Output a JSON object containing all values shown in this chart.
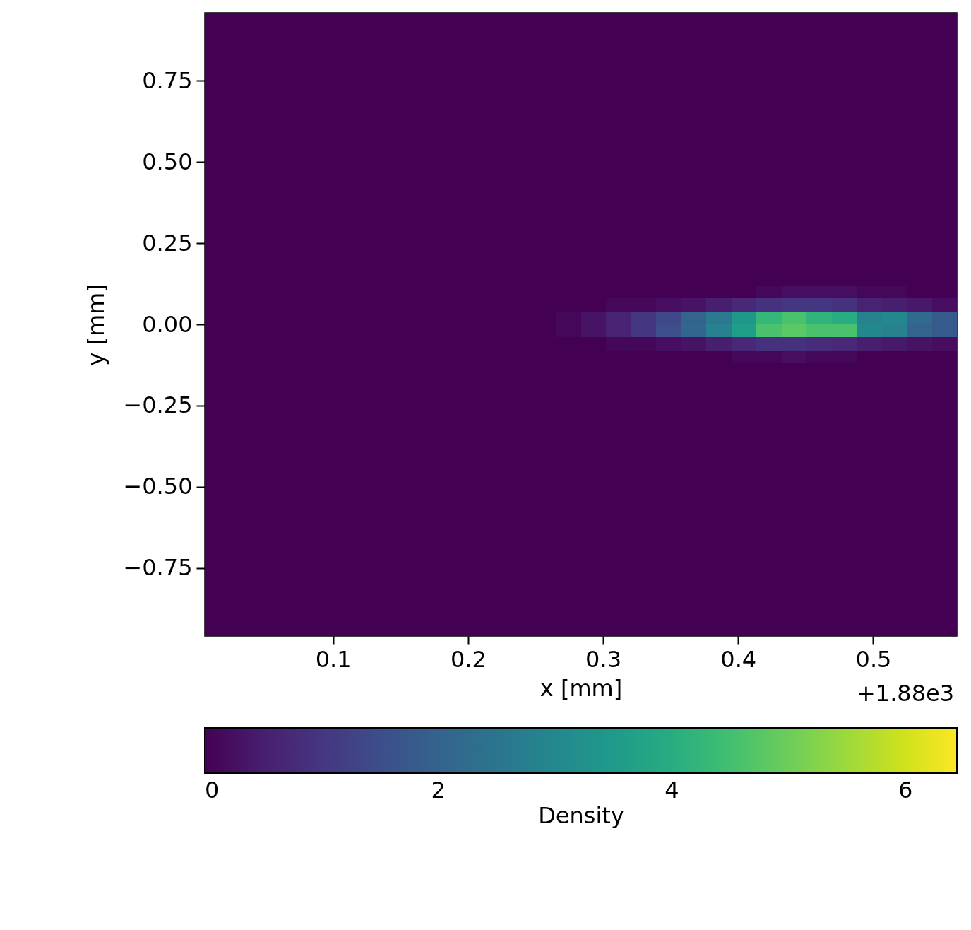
{
  "chart_data": {
    "type": "heatmap",
    "xlabel": "x [mm]",
    "ylabel": "y [mm]",
    "clabel": "Density",
    "annotations": [
      "+1.88e3"
    ],
    "xlim": [
      0.005,
      0.562
    ],
    "ylim": [
      -0.96,
      0.96
    ],
    "xticks": [
      0.1,
      0.2,
      0.3,
      0.4,
      0.5
    ],
    "yticks": [
      {
        "value": -0.75,
        "label": "−0.75"
      },
      {
        "value": -0.5,
        "label": "−0.50"
      },
      {
        "value": -0.25,
        "label": "−0.25"
      },
      {
        "value": 0,
        "label": "0.00"
      },
      {
        "value": 0.25,
        "label": "0.25"
      },
      {
        "value": 0.5,
        "label": "0.50"
      },
      {
        "value": 0.75,
        "label": "0.75"
      }
    ],
    "clim": [
      0,
      6.44
    ],
    "cticks": [
      0,
      2,
      4,
      6
    ],
    "cells": [
      [
        0,
        0,
        0,
        0,
        0,
        0,
        0,
        0,
        0,
        0,
        0,
        0,
        0,
        0,
        0,
        0,
        0,
        0,
        0,
        0,
        0,
        0,
        0,
        0,
        0,
        0,
        0,
        0,
        0,
        0
      ],
      [
        0,
        0,
        0,
        0,
        0,
        0,
        0,
        0,
        0,
        0,
        0,
        0,
        0,
        0,
        0,
        0,
        0,
        0,
        0,
        0,
        0,
        0,
        0,
        0,
        0,
        0,
        0,
        0,
        0,
        0
      ],
      [
        0,
        0,
        0,
        0,
        0,
        0,
        0,
        0,
        0,
        0,
        0,
        0,
        0,
        0,
        0,
        0,
        0,
        0,
        0,
        0,
        0,
        0,
        0,
        0,
        0,
        0,
        0,
        0,
        0,
        0
      ],
      [
        0,
        0,
        0,
        0,
        0,
        0,
        0,
        0,
        0,
        0,
        0,
        0,
        0,
        0,
        0,
        0,
        0,
        0,
        0,
        0,
        0,
        0,
        0,
        0,
        0,
        0,
        0,
        0,
        0,
        0
      ],
      [
        0,
        0,
        0,
        0,
        0,
        0,
        0,
        0,
        0,
        0,
        0,
        0,
        0,
        0,
        0,
        0,
        0,
        0,
        0,
        0,
        0,
        0,
        0,
        0,
        0,
        0,
        0,
        0,
        0,
        0
      ],
      [
        0,
        0,
        0,
        0,
        0,
        0,
        0,
        0,
        0,
        0,
        0,
        0,
        0,
        0,
        0,
        0,
        0,
        0,
        0,
        0,
        0,
        0,
        0,
        0,
        0,
        0,
        0,
        0,
        0,
        0
      ],
      [
        0,
        0,
        0,
        0,
        0,
        0,
        0,
        0,
        0,
        0,
        0,
        0,
        0,
        0,
        0,
        0,
        0,
        0,
        0,
        0,
        0,
        0,
        0,
        0,
        0,
        0,
        0,
        0,
        0,
        0
      ],
      [
        0,
        0,
        0,
        0,
        0,
        0,
        0,
        0,
        0,
        0,
        0,
        0,
        0,
        0,
        0,
        0,
        0,
        0,
        0,
        0,
        0,
        0,
        0,
        0,
        0,
        0,
        0,
        0,
        0,
        0
      ],
      [
        0,
        0,
        0,
        0,
        0,
        0,
        0,
        0,
        0,
        0,
        0,
        0,
        0,
        0,
        0,
        0,
        0,
        0,
        0,
        0,
        0,
        0,
        0,
        0,
        0,
        0,
        0,
        0,
        0,
        0
      ],
      [
        0,
        0,
        0,
        0,
        0,
        0,
        0,
        0,
        0,
        0,
        0,
        0,
        0,
        0,
        0,
        0,
        0,
        0,
        0,
        0,
        0,
        0,
        0,
        0,
        0,
        0,
        0,
        0,
        0,
        0
      ],
      [
        0,
        0,
        0,
        0,
        0,
        0,
        0,
        0,
        0,
        0,
        0,
        0,
        0,
        0,
        0,
        0,
        0,
        0,
        0,
        0,
        0,
        0,
        0,
        0,
        0,
        0,
        0,
        0,
        0,
        0
      ],
      [
        0,
        0,
        0,
        0,
        0,
        0,
        0,
        0,
        0,
        0,
        0,
        0,
        0,
        0,
        0,
        0,
        0,
        0,
        0,
        0,
        0,
        0,
        0,
        0,
        0,
        0,
        0,
        0,
        0,
        0
      ],
      [
        0,
        0,
        0,
        0,
        0,
        0,
        0,
        0,
        0,
        0,
        0,
        0,
        0,
        0,
        0,
        0,
        0,
        0,
        0,
        0,
        0,
        0,
        0,
        0,
        0,
        0,
        0,
        0,
        0,
        0
      ],
      [
        0,
        0,
        0,
        0,
        0,
        0,
        0,
        0,
        0,
        0,
        0,
        0,
        0,
        0,
        0,
        0,
        0,
        0,
        0,
        0,
        0,
        0,
        0,
        0,
        0,
        0,
        0,
        0,
        0,
        0
      ],
      [
        0,
        0,
        0,
        0,
        0,
        0,
        0,
        0,
        0,
        0,
        0,
        0,
        0,
        0,
        0,
        0,
        0,
        0,
        0,
        0,
        0,
        0,
        0,
        0,
        0,
        0,
        0,
        0,
        0,
        0
      ],
      [
        0,
        0,
        0,
        0,
        0,
        0,
        0,
        0,
        0,
        0,
        0,
        0,
        0,
        0,
        0,
        0,
        0,
        0,
        0,
        0,
        0,
        0,
        0,
        0,
        0,
        0,
        0,
        0,
        0,
        0
      ],
      [
        0,
        0,
        0,
        0,
        0,
        0,
        0,
        0,
        0,
        0,
        0,
        0,
        0,
        0,
        0,
        0,
        0,
        0,
        0,
        0,
        0,
        0,
        0,
        0,
        0,
        0,
        0,
        0,
        0,
        0
      ],
      [
        0,
        0,
        0,
        0,
        0,
        0,
        0,
        0,
        0,
        0,
        0,
        0,
        0,
        0,
        0,
        0,
        0,
        0,
        0,
        0,
        0,
        0,
        0,
        0,
        0,
        0,
        0,
        0,
        0,
        0
      ],
      [
        0,
        0,
        0,
        0,
        0,
        0,
        0,
        0,
        0,
        0,
        0,
        0,
        0,
        0,
        0,
        0,
        0,
        0,
        0,
        0,
        0,
        0,
        0,
        0,
        0,
        0,
        0,
        0,
        0,
        0
      ],
      [
        0,
        0,
        0,
        0,
        0,
        0,
        0,
        0,
        0,
        0,
        0,
        0,
        0,
        0,
        0,
        0,
        0,
        0,
        0,
        0,
        0,
        0,
        0,
        0,
        0,
        0,
        0,
        0,
        0,
        0
      ],
      [
        0,
        0,
        0,
        0,
        0,
        0,
        0,
        0,
        0,
        0,
        0,
        0,
        0,
        0,
        0,
        0,
        0,
        0,
        0,
        0,
        0,
        0,
        0,
        0,
        0,
        0,
        0,
        0,
        0,
        0
      ],
      [
        0,
        0,
        0,
        0,
        0,
        0,
        0,
        0,
        0,
        0,
        0,
        0,
        0,
        0,
        0,
        0,
        0,
        0,
        0,
        0,
        0,
        0,
        0.1,
        0.2,
        0.2,
        0.2,
        0.1,
        0.1,
        0,
        0
      ],
      [
        0,
        0,
        0,
        0,
        0,
        0,
        0,
        0,
        0,
        0,
        0,
        0,
        0,
        0,
        0,
        0,
        0.1,
        0.1,
        0.2,
        0.3,
        0.5,
        0.7,
        0.9,
        1.0,
        1.0,
        0.9,
        0.6,
        0.5,
        0.4,
        0.2
      ],
      [
        0,
        0,
        0,
        0,
        0,
        0,
        0,
        0,
        0,
        0,
        0,
        0,
        0,
        0,
        0.1,
        0.3,
        0.6,
        1.0,
        1.4,
        2.0,
        2.6,
        3.4,
        4.3,
        4.6,
        4.2,
        4.0,
        2.8,
        3.0,
        2.2,
        1.8
      ],
      [
        0,
        0,
        0,
        0,
        0,
        0,
        0,
        0,
        0,
        0,
        0,
        0,
        0,
        0,
        0.1,
        0.3,
        0.6,
        1.0,
        1.5,
        2.1,
        2.8,
        3.6,
        4.6,
        4.8,
        4.6,
        4.6,
        3.0,
        2.8,
        2.0,
        1.8
      ],
      [
        0,
        0,
        0,
        0,
        0,
        0,
        0,
        0,
        0,
        0,
        0,
        0,
        0,
        0,
        0,
        0,
        0.1,
        0.1,
        0.2,
        0.3,
        0.5,
        0.7,
        0.9,
        0.9,
        0.8,
        0.7,
        0.5,
        0.4,
        0.3,
        0.2
      ],
      [
        0,
        0,
        0,
        0,
        0,
        0,
        0,
        0,
        0,
        0,
        0,
        0,
        0,
        0,
        0,
        0,
        0,
        0,
        0,
        0,
        0,
        0.1,
        0.1,
        0.2,
        0.1,
        0.1,
        0,
        0,
        0,
        0
      ],
      [
        0,
        0,
        0,
        0,
        0,
        0,
        0,
        0,
        0,
        0,
        0,
        0,
        0,
        0,
        0,
        0,
        0,
        0,
        0,
        0,
        0,
        0,
        0,
        0,
        0,
        0,
        0,
        0,
        0,
        0
      ],
      [
        0,
        0,
        0,
        0,
        0,
        0,
        0,
        0,
        0,
        0,
        0,
        0,
        0,
        0,
        0,
        0,
        0,
        0,
        0,
        0,
        0,
        0,
        0,
        0,
        0,
        0,
        0,
        0,
        0,
        0
      ],
      [
        0,
        0,
        0,
        0,
        0,
        0,
        0,
        0,
        0,
        0,
        0,
        0,
        0,
        0,
        0,
        0,
        0,
        0,
        0,
        0,
        0,
        0,
        0,
        0,
        0,
        0,
        0,
        0,
        0,
        0
      ],
      [
        0,
        0,
        0,
        0,
        0,
        0,
        0,
        0,
        0,
        0,
        0,
        0,
        0,
        0,
        0,
        0,
        0,
        0,
        0,
        0,
        0,
        0,
        0,
        0,
        0,
        0,
        0,
        0,
        0,
        0
      ],
      [
        0,
        0,
        0,
        0,
        0,
        0,
        0,
        0,
        0,
        0,
        0,
        0,
        0,
        0,
        0,
        0,
        0,
        0,
        0,
        0,
        0,
        0,
        0,
        0,
        0,
        0,
        0,
        0,
        0,
        0
      ],
      [
        0,
        0,
        0,
        0,
        0,
        0,
        0,
        0,
        0,
        0,
        0,
        0,
        0,
        0,
        0,
        0,
        0,
        0,
        0,
        0,
        0,
        0,
        0,
        0,
        0,
        0,
        0,
        0,
        0,
        0
      ],
      [
        0,
        0,
        0,
        0,
        0,
        0,
        0,
        0,
        0,
        0,
        0,
        0,
        0,
        0,
        0,
        0,
        0,
        0,
        0,
        0,
        0,
        0,
        0,
        0,
        0,
        0,
        0,
        0,
        0,
        0
      ],
      [
        0,
        0,
        0,
        0,
        0,
        0,
        0,
        0,
        0,
        0,
        0,
        0,
        0,
        0,
        0,
        0,
        0,
        0,
        0,
        0,
        0,
        0,
        0,
        0,
        0,
        0,
        0,
        0,
        0,
        0
      ],
      [
        0,
        0,
        0,
        0,
        0,
        0,
        0,
        0,
        0,
        0,
        0,
        0,
        0,
        0,
        0,
        0,
        0,
        0,
        0,
        0,
        0,
        0,
        0,
        0,
        0,
        0,
        0,
        0,
        0,
        0
      ],
      [
        0,
        0,
        0,
        0,
        0,
        0,
        0,
        0,
        0,
        0,
        0,
        0,
        0,
        0,
        0,
        0,
        0,
        0,
        0,
        0,
        0,
        0,
        0,
        0,
        0,
        0,
        0,
        0,
        0,
        0
      ],
      [
        0,
        0,
        0,
        0,
        0,
        0,
        0,
        0,
        0,
        0,
        0,
        0,
        0,
        0,
        0,
        0,
        0,
        0,
        0,
        0,
        0,
        0,
        0,
        0,
        0,
        0,
        0,
        0,
        0,
        0
      ],
      [
        0,
        0,
        0,
        0,
        0,
        0,
        0,
        0,
        0,
        0,
        0,
        0,
        0,
        0,
        0,
        0,
        0,
        0,
        0,
        0,
        0,
        0,
        0,
        0,
        0,
        0,
        0,
        0,
        0,
        0
      ],
      [
        0,
        0,
        0,
        0,
        0,
        0,
        0,
        0,
        0,
        0,
        0,
        0,
        0,
        0,
        0,
        0,
        0,
        0,
        0,
        0,
        0,
        0,
        0,
        0,
        0,
        0,
        0,
        0,
        0,
        0
      ],
      [
        0,
        0,
        0,
        0,
        0,
        0,
        0,
        0,
        0,
        0,
        0,
        0,
        0,
        0,
        0,
        0,
        0,
        0,
        0,
        0,
        0,
        0,
        0,
        0,
        0,
        0,
        0,
        0,
        0,
        0
      ],
      [
        0,
        0,
        0,
        0,
        0,
        0,
        0,
        0,
        0,
        0,
        0,
        0,
        0,
        0,
        0,
        0,
        0,
        0,
        0,
        0,
        0,
        0,
        0,
        0,
        0,
        0,
        0,
        0,
        0,
        0
      ],
      [
        0,
        0,
        0,
        0,
        0,
        0,
        0,
        0,
        0,
        0,
        0,
        0,
        0,
        0,
        0,
        0,
        0,
        0,
        0,
        0,
        0,
        0,
        0,
        0,
        0,
        0,
        0,
        0,
        0,
        0
      ],
      [
        0,
        0,
        0,
        0,
        0,
        0,
        0,
        0,
        0,
        0,
        0,
        0,
        0,
        0,
        0,
        0,
        0,
        0,
        0,
        0,
        0,
        0,
        0,
        0,
        0,
        0,
        0,
        0,
        0,
        0
      ],
      [
        0,
        0,
        0,
        0,
        0,
        0,
        0,
        0,
        0,
        0,
        0,
        0,
        0,
        0,
        0,
        0,
        0,
        0,
        0,
        0,
        0,
        0,
        0,
        0,
        0,
        0,
        0,
        0,
        0,
        0
      ],
      [
        0,
        0,
        0,
        0,
        0,
        0,
        0,
        0,
        0,
        0,
        0,
        0,
        0,
        0,
        0,
        0,
        0,
        0,
        0,
        0,
        0,
        0,
        0,
        0,
        0,
        0,
        0,
        0,
        0,
        0
      ],
      [
        0,
        0,
        0,
        0,
        0,
        0,
        0,
        0,
        0,
        0,
        0,
        0,
        0,
        0,
        0,
        0,
        0,
        0,
        0,
        0,
        0,
        0,
        0,
        0,
        0,
        0,
        0,
        0,
        0,
        0
      ],
      [
        0,
        0,
        0,
        0,
        0,
        0,
        0,
        0,
        0,
        0,
        0,
        0,
        0,
        0,
        0,
        0,
        0,
        0,
        0,
        0,
        0,
        0,
        0,
        0,
        0,
        0,
        0,
        0,
        0,
        0
      ]
    ]
  }
}
